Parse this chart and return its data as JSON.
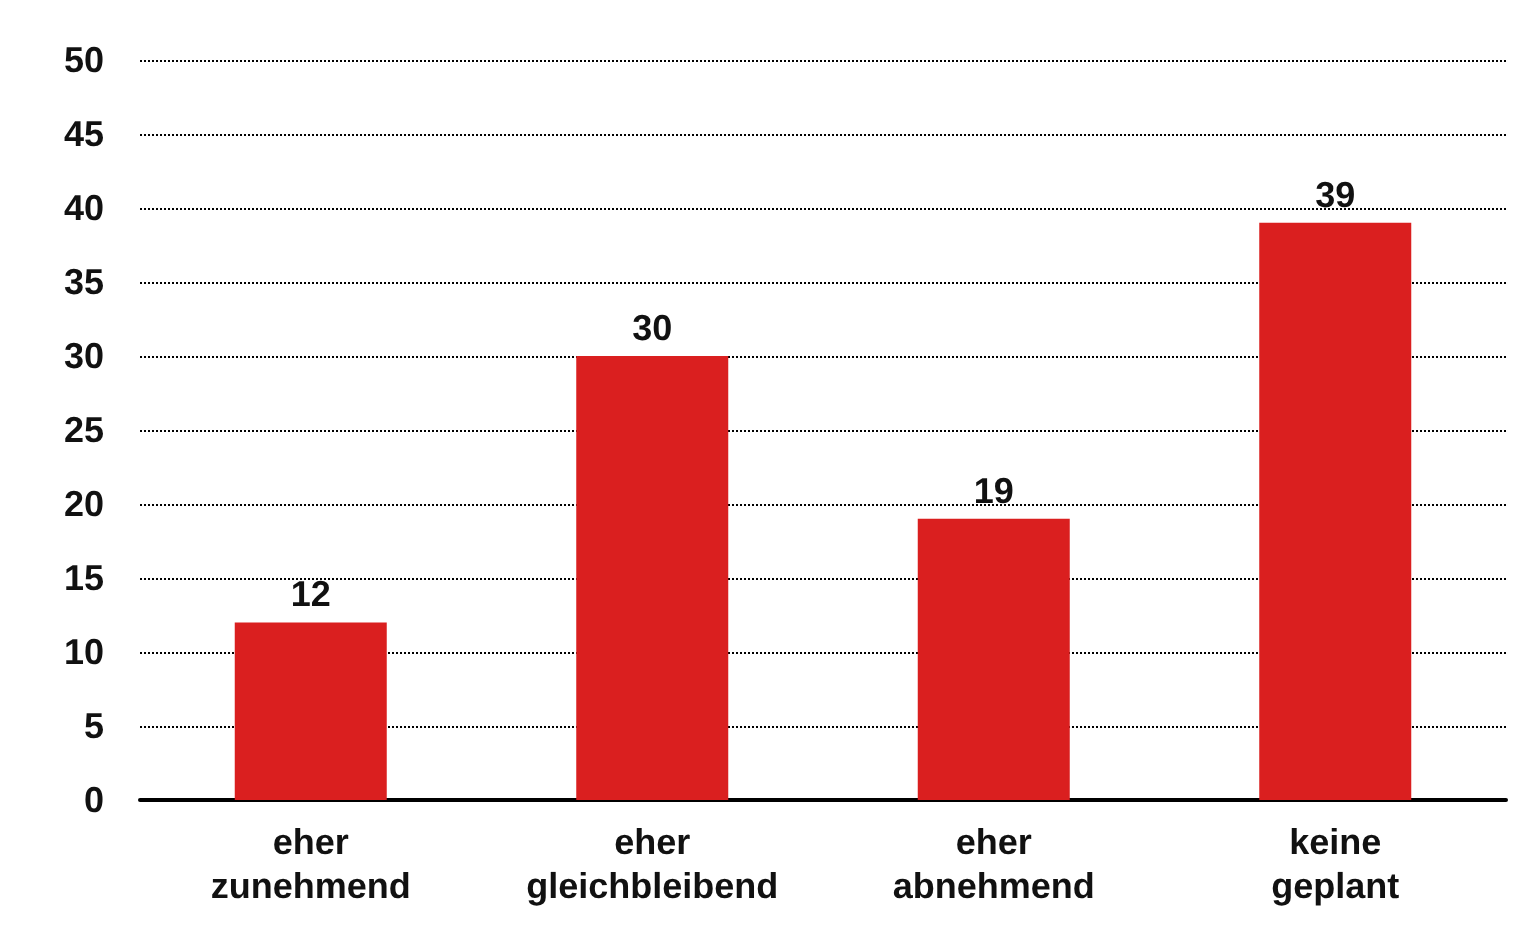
{
  "chart_data": {
    "type": "bar",
    "categories": [
      "eher zunehmend",
      "eher gleichbleibend",
      "eher abnehmend",
      "keine geplant"
    ],
    "values": [
      12,
      30,
      19,
      39
    ],
    "color": "#da1f1f",
    "ylim": [
      0,
      50
    ],
    "yticks": [
      0,
      5,
      10,
      15,
      20,
      25,
      30,
      35,
      40,
      45,
      50
    ],
    "grid": "y",
    "line_style": "dotted",
    "data_labels": true
  }
}
